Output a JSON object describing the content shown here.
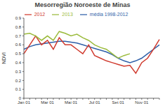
{
  "chart_data": {
    "type": "line",
    "title": "Mesorregião Noroeste de Minas",
    "y_label": "NDVI",
    "categories": [
      "Jan 01",
      null,
      null,
      null,
      "Mar 01",
      null,
      null,
      null,
      "Mai 01",
      null,
      null,
      null,
      "Jul 01",
      null,
      null,
      null,
      "Set 01",
      null,
      null,
      null,
      "Nov 01",
      null,
      null,
      null
    ],
    "series": [
      {
        "name": "média 1998-2012",
        "color": "#2e5fa8",
        "values": [
          0.55,
          0.58,
          0.6,
          0.61,
          0.62,
          0.63,
          0.64,
          0.64,
          0.63,
          0.62,
          0.6,
          0.58,
          0.56,
          0.54,
          0.52,
          0.49,
          0.45,
          0.42,
          0.4,
          0.42,
          0.45,
          0.5,
          0.55,
          0.6
        ]
      },
      {
        "name": "2012",
        "color": "#d03a2e",
        "values": [
          0.5,
          0.6,
          0.7,
          0.6,
          0.65,
          0.55,
          0.68,
          0.6,
          0.6,
          0.55,
          0.5,
          0.6,
          0.48,
          0.45,
          0.42,
          0.4,
          0.38,
          0.36,
          0.37,
          0.28,
          0.4,
          0.45,
          0.55,
          0.66
        ]
      },
      {
        "name": "2013",
        "color": "#9bbb3c",
        "values": [
          0.72,
          0.73,
          0.7,
          0.65,
          0.7,
          0.65,
          0.75,
          0.73,
          0.7,
          0.72,
          0.68,
          0.65,
          0.6,
          0.57,
          0.55,
          0.5,
          0.45,
          0.48,
          0.5,
          null,
          null,
          null,
          null,
          null
        ]
      }
    ],
    "ylim": [
      0,
      0.9
    ],
    "yticks": [
      0,
      0.1,
      0.2,
      0.3,
      0.4,
      0.5,
      0.6,
      0.7,
      0.8,
      0.9
    ],
    "grid": false,
    "legend": "top"
  }
}
